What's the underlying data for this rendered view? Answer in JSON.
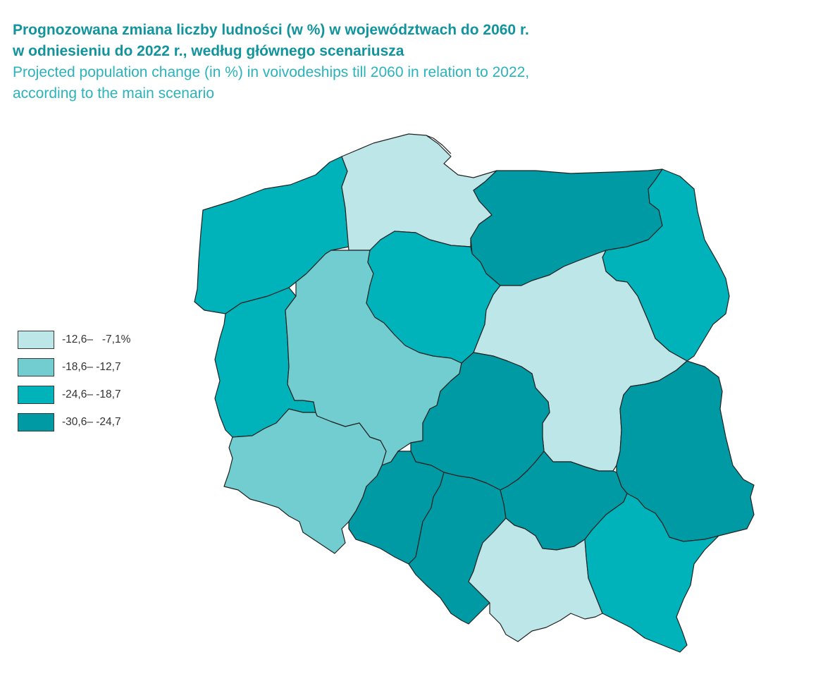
{
  "title": {
    "pl": "Prognozowana zmiana liczby ludności (w %) w województwach do 2060 r.\nw odniesieniu do 2022 r., według głównego scenariusza",
    "en": "Projected population change (in %) in voivodeships till 2060 in relation to 2022,\naccording to the main scenario"
  },
  "legend": [
    {
      "label": "-12,6–   -7,1%",
      "color": "#bde6e8",
      "class": 1
    },
    {
      "label": "-18,6– -12,7",
      "color": "#71cdcf",
      "class": 2
    },
    {
      "label": "-24,6– -18,7",
      "color": "#00b3bb",
      "class": 3
    },
    {
      "label": "-30,6– -24,7",
      "color": "#009aa4",
      "class": 4
    }
  ],
  "regions": [
    {
      "name": "zachodniopomorskie",
      "class": 3
    },
    {
      "name": "pomorskie",
      "class": 1
    },
    {
      "name": "warminsko-mazurskie",
      "class": 4
    },
    {
      "name": "podlaskie",
      "class": 3
    },
    {
      "name": "lubuskie",
      "class": 3
    },
    {
      "name": "wielkopolskie",
      "class": 2
    },
    {
      "name": "kujawsko-pomorskie",
      "class": 3
    },
    {
      "name": "mazowieckie",
      "class": 1
    },
    {
      "name": "lodzkie",
      "class": 4
    },
    {
      "name": "lubelskie",
      "class": 4
    },
    {
      "name": "dolnoslaskie",
      "class": 2
    },
    {
      "name": "opolskie",
      "class": 4
    },
    {
      "name": "slaskie",
      "class": 4
    },
    {
      "name": "swietokrzyskie",
      "class": 4
    },
    {
      "name": "malopolskie",
      "class": 1
    },
    {
      "name": "podkarpackie",
      "class": 3
    }
  ]
}
